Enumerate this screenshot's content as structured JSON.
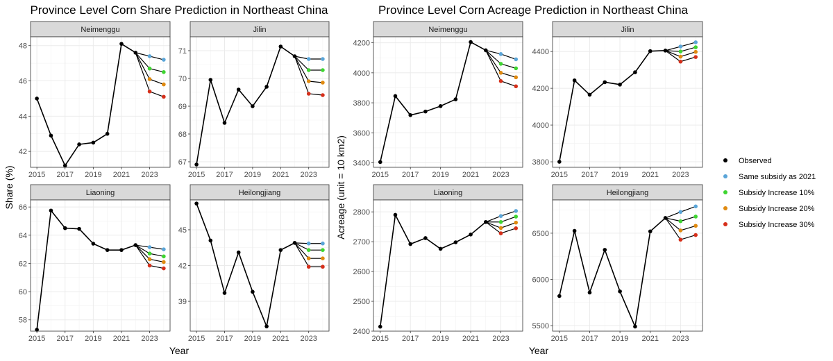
{
  "colors": {
    "observed": "#000000",
    "same": "#5aa5d8",
    "inc10": "#3ed531",
    "inc20": "#e08a10",
    "inc30": "#d62f1a",
    "strip_fill": "#d9d9d9",
    "grid": "#ebebeb"
  },
  "legend": {
    "items": [
      {
        "key": "observed",
        "label": "Observed"
      },
      {
        "key": "same",
        "label": "Same subsidy as 2021"
      },
      {
        "key": "inc10",
        "label": "Subsidy Increase 10%"
      },
      {
        "key": "inc20",
        "label": "Subsidy Increase 20%"
      },
      {
        "key": "inc30",
        "label": "Subsidy Increase 30%"
      }
    ]
  },
  "chart_data": [
    {
      "type": "line",
      "title": "Province Level Corn Share Prediction in Northeast China",
      "xlabel": "Year",
      "ylabel": "Share (%)",
      "x_ticks": [
        "2015",
        "2017",
        "2019",
        "2021",
        "2023"
      ],
      "facets": [
        {
          "name": "Neimenggu",
          "ylim": [
            41.1,
            48.5
          ],
          "y_ticks": [
            "42",
            "44",
            "46",
            "48"
          ],
          "observed": {
            "x": [
              2015,
              2016,
              2017,
              2018,
              2019,
              2020,
              2021,
              2022
            ],
            "y": [
              45.0,
              42.9,
              41.2,
              42.4,
              42.5,
              43.0,
              48.1,
              47.6
            ]
          },
          "scenarios": {
            "same": [
              47.4,
              47.2
            ],
            "inc10": [
              46.7,
              46.5
            ],
            "inc20": [
              46.1,
              45.8
            ],
            "inc30": [
              45.4,
              45.1
            ]
          }
        },
        {
          "name": "Jilin",
          "ylim": [
            66.8,
            71.5
          ],
          "y_ticks": [
            "67",
            "68",
            "69",
            "70",
            "71"
          ],
          "observed": {
            "x": [
              2015,
              2016,
              2017,
              2018,
              2019,
              2020,
              2021,
              2022
            ],
            "y": [
              66.9,
              69.95,
              68.4,
              69.6,
              69.0,
              69.7,
              71.15,
              70.8
            ]
          },
          "scenarios": {
            "same": [
              70.7,
              70.7
            ],
            "inc10": [
              70.3,
              70.3
            ],
            "inc20": [
              69.9,
              69.85
            ],
            "inc30": [
              69.45,
              69.4
            ]
          }
        },
        {
          "name": "Liaoning",
          "ylim": [
            57.2,
            66.5
          ],
          "y_ticks": [
            "58",
            "60",
            "62",
            "64",
            "66"
          ],
          "observed": {
            "x": [
              2015,
              2016,
              2017,
              2018,
              2019,
              2020,
              2021,
              2022
            ],
            "y": [
              57.3,
              65.75,
              64.5,
              64.45,
              63.4,
              62.95,
              62.95,
              63.3
            ]
          },
          "scenarios": {
            "same": [
              63.15,
              63.0
            ],
            "inc10": [
              62.7,
              62.5
            ],
            "inc20": [
              62.3,
              62.1
            ],
            "inc30": [
              61.85,
              61.65
            ]
          }
        },
        {
          "name": "Heilongjiang",
          "ylim": [
            36.5,
            47.5
          ],
          "y_ticks": [
            "39",
            "42",
            "45"
          ],
          "observed": {
            "x": [
              2015,
              2016,
              2017,
              2018,
              2019,
              2020,
              2021,
              2022
            ],
            "y": [
              47.2,
              44.1,
              39.7,
              43.1,
              39.8,
              36.9,
              43.3,
              43.9
            ]
          },
          "scenarios": {
            "same": [
              43.85,
              43.85
            ],
            "inc10": [
              43.3,
              43.3
            ],
            "inc20": [
              42.6,
              42.6
            ],
            "inc30": [
              41.9,
              41.9
            ]
          }
        }
      ]
    },
    {
      "type": "line",
      "title": "Province Level Corn Acreage Prediction in Northeast China",
      "xlabel": "Year",
      "ylabel": "Acreage (unit = 10 km2)",
      "x_ticks": [
        "2015",
        "2017",
        "2019",
        "2021",
        "2023"
      ],
      "facets": [
        {
          "name": "Neimenggu",
          "ylim": [
            3370,
            4240
          ],
          "y_ticks": [
            "3400",
            "3600",
            "3800",
            "4000",
            "4200"
          ],
          "observed": {
            "x": [
              2015,
              2016,
              2017,
              2018,
              2019,
              2020,
              2021,
              2022
            ],
            "y": [
              3405,
              3845,
              3718,
              3742,
              3778,
              3823,
              4205,
              4150
            ]
          },
          "scenarios": {
            "same": [
              4125,
              4090
            ],
            "inc10": [
              4060,
              4030
            ],
            "inc20": [
              4000,
              3970
            ],
            "inc30": [
              3945,
              3910
            ]
          }
        },
        {
          "name": "Jilin",
          "ylim": [
            3770,
            4480
          ],
          "y_ticks": [
            "3800",
            "4000",
            "4200",
            "4400"
          ],
          "observed": {
            "x": [
              2015,
              2016,
              2017,
              2018,
              2019,
              2020,
              2021,
              2022
            ],
            "y": [
              3800,
              4243,
              4165,
              4233,
              4220,
              4287,
              4402,
              4405
            ]
          },
          "scenarios": {
            "same": [
              4427,
              4450
            ],
            "inc10": [
              4400,
              4423
            ],
            "inc20": [
              4372,
              4398
            ],
            "inc30": [
              4345,
              4370
            ]
          }
        },
        {
          "name": "Liaoning",
          "ylim": [
            2400,
            2840
          ],
          "y_ticks": [
            "2400",
            "2500",
            "2600",
            "2700",
            "2800"
          ],
          "observed": {
            "x": [
              2015,
              2016,
              2017,
              2018,
              2019,
              2020,
              2021,
              2022
            ],
            "y": [
              2415,
              2790,
              2692,
              2712,
              2676,
              2698,
              2724,
              2766
            ]
          },
          "scenarios": {
            "same": [
              2786,
              2803
            ],
            "inc10": [
              2766,
              2784
            ],
            "inc20": [
              2746,
              2764
            ],
            "inc30": [
              2728,
              2745
            ]
          }
        },
        {
          "name": "Heilongjiang",
          "ylim": [
            5440,
            6860
          ],
          "y_ticks": [
            "5500",
            "6000",
            "6500"
          ],
          "observed": {
            "x": [
              2015,
              2016,
              2017,
              2018,
              2019,
              2020,
              2021,
              2022
            ],
            "y": [
              5820,
              6525,
              5858,
              6320,
              5870,
              5490,
              6520,
              6665
            ]
          },
          "scenarios": {
            "same": [
              6730,
              6790
            ],
            "inc10": [
              6630,
              6680
            ],
            "inc20": [
              6530,
              6580
            ],
            "inc30": [
              6430,
              6480
            ]
          }
        }
      ]
    }
  ]
}
